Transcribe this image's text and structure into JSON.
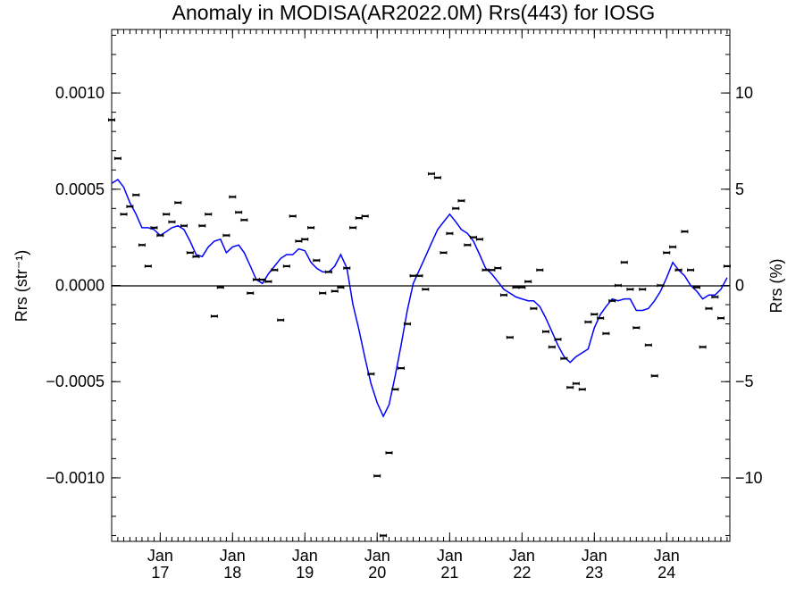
{
  "chart_data": {
    "type": "scatter",
    "title": "Anomaly in MODISA(AR2022.0M) Rrs(443) for IOSG",
    "ylabel_left": "Rrs (str⁻¹)",
    "ylabel_right": "Rrs (%)",
    "ylim": [
      -0.00133,
      0.00133
    ],
    "y2lim": [
      -13.3,
      13.3
    ],
    "xlim": [
      "2016-05-01",
      "2024-11-15"
    ],
    "yticks": [
      {
        "value": 0.001,
        "label": "0.0010"
      },
      {
        "value": 0.0005,
        "label": "0.0005"
      },
      {
        "value": 0.0,
        "label": "0.0000"
      },
      {
        "value": -0.0005,
        "label": "−0.0005"
      },
      {
        "value": -0.001,
        "label": "−0.0010"
      }
    ],
    "y2ticks": [
      {
        "value": 10,
        "label": "10"
      },
      {
        "value": 5,
        "label": "5"
      },
      {
        "value": 0,
        "label": "0"
      },
      {
        "value": -5,
        "label": "−5"
      },
      {
        "value": -10,
        "label": "−10"
      }
    ],
    "xticks": [
      {
        "date": "2017-01-01",
        "month": "Jan",
        "year": "17"
      },
      {
        "date": "2018-01-01",
        "month": "Jan",
        "year": "18"
      },
      {
        "date": "2019-01-01",
        "month": "Jan",
        "year": "19"
      },
      {
        "date": "2020-01-01",
        "month": "Jan",
        "year": "20"
      },
      {
        "date": "2021-01-01",
        "month": "Jan",
        "year": "21"
      },
      {
        "date": "2022-01-01",
        "month": "Jan",
        "year": "22"
      },
      {
        "date": "2023-01-01",
        "month": "Jan",
        "year": "23"
      },
      {
        "date": "2024-01-01",
        "month": "Jan",
        "year": "24"
      }
    ],
    "zero_line": true,
    "series": [
      {
        "kind": "monthly_points",
        "color": "#000000",
        "points": [
          [
            "2016-05-01",
            0.00086
          ],
          [
            "2016-06-01",
            0.00066
          ],
          [
            "2016-07-01",
            0.00037
          ],
          [
            "2016-08-01",
            0.00041
          ],
          [
            "2016-09-01",
            0.00047
          ],
          [
            "2016-10-01",
            0.00021
          ],
          [
            "2016-11-01",
            0.0001
          ],
          [
            "2016-12-01",
            0.0003
          ],
          [
            "2017-01-01",
            0.00026
          ],
          [
            "2017-02-01",
            0.00037
          ],
          [
            "2017-03-01",
            0.00033
          ],
          [
            "2017-04-01",
            0.00043
          ],
          [
            "2017-05-01",
            0.00031
          ],
          [
            "2017-06-01",
            0.00017
          ],
          [
            "2017-07-01",
            0.00015
          ],
          [
            "2017-08-01",
            0.00031
          ],
          [
            "2017-09-01",
            0.00037
          ],
          [
            "2017-10-01",
            -0.00016
          ],
          [
            "2017-11-01",
            -1e-05
          ],
          [
            "2017-12-01",
            0.00026
          ],
          [
            "2018-01-01",
            0.00046
          ],
          [
            "2018-02-01",
            0.00038
          ],
          [
            "2018-03-01",
            0.00034
          ],
          [
            "2018-04-01",
            -4e-05
          ],
          [
            "2018-05-01",
            3e-05
          ],
          [
            "2018-06-01",
            3e-05
          ],
          [
            "2018-07-01",
            2e-05
          ],
          [
            "2018-08-01",
            8e-05
          ],
          [
            "2018-09-01",
            -0.00018
          ],
          [
            "2018-10-01",
            0.0001
          ],
          [
            "2018-11-01",
            0.00036
          ],
          [
            "2018-12-01",
            0.00023
          ],
          [
            "2019-01-01",
            0.00024
          ],
          [
            "2019-02-01",
            0.0003
          ],
          [
            "2019-03-01",
            0.00013
          ],
          [
            "2019-04-01",
            -4e-05
          ],
          [
            "2019-05-01",
            7e-05
          ],
          [
            "2019-06-01",
            -3e-05
          ],
          [
            "2019-07-01",
            -1e-05
          ],
          [
            "2019-08-01",
            9e-05
          ],
          [
            "2019-09-01",
            0.0003
          ],
          [
            "2019-10-01",
            0.00035
          ],
          [
            "2019-11-01",
            0.00036
          ],
          [
            "2019-12-01",
            -0.00046
          ],
          [
            "2020-01-01",
            -0.00099
          ],
          [
            "2020-02-01",
            -0.0013
          ],
          [
            "2020-03-01",
            -0.00087
          ],
          [
            "2020-04-01",
            -0.00054
          ],
          [
            "2020-05-01",
            -0.00043
          ],
          [
            "2020-06-01",
            -0.0002
          ],
          [
            "2020-07-01",
            5e-05
          ],
          [
            "2020-08-01",
            5e-05
          ],
          [
            "2020-09-01",
            -2e-05
          ],
          [
            "2020-10-01",
            0.00058
          ],
          [
            "2020-11-01",
            0.00056
          ],
          [
            "2020-12-01",
            0.00017
          ],
          [
            "2021-01-01",
            0.00027
          ],
          [
            "2021-02-01",
            0.0004
          ],
          [
            "2021-03-01",
            0.00044
          ],
          [
            "2021-04-01",
            0.00021
          ],
          [
            "2021-05-01",
            0.00025
          ],
          [
            "2021-06-01",
            0.00024
          ],
          [
            "2021-07-01",
            8e-05
          ],
          [
            "2021-08-01",
            8e-05
          ],
          [
            "2021-09-01",
            9e-05
          ],
          [
            "2021-10-01",
            -5e-05
          ],
          [
            "2021-11-01",
            -0.00027
          ],
          [
            "2021-12-01",
            -1e-05
          ],
          [
            "2022-01-01",
            -1e-05
          ],
          [
            "2022-02-01",
            2e-05
          ],
          [
            "2022-03-01",
            -0.00012
          ],
          [
            "2022-04-01",
            8e-05
          ],
          [
            "2022-05-01",
            -0.00024
          ],
          [
            "2022-06-01",
            -0.00032
          ],
          [
            "2022-07-01",
            -0.00028
          ],
          [
            "2022-08-01",
            -0.00038
          ],
          [
            "2022-09-01",
            -0.00053
          ],
          [
            "2022-10-01",
            -0.00051
          ],
          [
            "2022-11-01",
            -0.00054
          ],
          [
            "2022-12-01",
            -0.00019
          ],
          [
            "2023-01-01",
            -0.00015
          ],
          [
            "2023-02-01",
            -0.00017
          ],
          [
            "2023-03-01",
            -0.00025
          ],
          [
            "2023-04-01",
            -8e-05
          ],
          [
            "2023-05-01",
            0.0
          ],
          [
            "2023-06-01",
            0.00012
          ],
          [
            "2023-07-01",
            -2e-05
          ],
          [
            "2023-08-01",
            -0.00022
          ],
          [
            "2023-09-01",
            -2e-05
          ],
          [
            "2023-10-01",
            -0.00031
          ],
          [
            "2023-11-01",
            -0.00047
          ],
          [
            "2023-12-01",
            0.0
          ],
          [
            "2024-01-01",
            0.00017
          ],
          [
            "2024-02-01",
            0.0002
          ],
          [
            "2024-03-01",
            8e-05
          ],
          [
            "2024-04-01",
            0.00028
          ],
          [
            "2024-05-01",
            8e-05
          ],
          [
            "2024-06-01",
            -1e-05
          ],
          [
            "2024-07-01",
            -0.00032
          ],
          [
            "2024-08-01",
            -0.00012
          ],
          [
            "2024-09-01",
            -6e-05
          ],
          [
            "2024-10-01",
            -0.00017
          ],
          [
            "2024-11-01",
            0.0001
          ]
        ]
      },
      {
        "kind": "running_mean",
        "color": "#0000ff",
        "points": [
          [
            "2016-05-01",
            0.00053
          ],
          [
            "2016-06-01",
            0.00055
          ],
          [
            "2016-07-01",
            0.00051
          ],
          [
            "2016-08-01",
            0.00043
          ],
          [
            "2016-09-01",
            0.00037
          ],
          [
            "2016-10-01",
            0.0003
          ],
          [
            "2016-11-01",
            0.0003
          ],
          [
            "2016-12-01",
            0.00029
          ],
          [
            "2017-01-01",
            0.00026
          ],
          [
            "2017-02-01",
            0.00028
          ],
          [
            "2017-03-01",
            0.0003
          ],
          [
            "2017-04-01",
            0.00031
          ],
          [
            "2017-05-01",
            0.00029
          ],
          [
            "2017-06-01",
            0.00023
          ],
          [
            "2017-07-01",
            0.00016
          ],
          [
            "2017-08-01",
            0.00015
          ],
          [
            "2017-09-01",
            0.0002
          ],
          [
            "2017-10-01",
            0.00023
          ],
          [
            "2017-11-01",
            0.00024
          ],
          [
            "2017-12-01",
            0.00017
          ],
          [
            "2018-01-01",
            0.0002
          ],
          [
            "2018-02-01",
            0.00021
          ],
          [
            "2018-03-01",
            0.00017
          ],
          [
            "2018-04-01",
            0.0001
          ],
          [
            "2018-05-01",
            3e-05
          ],
          [
            "2018-06-01",
            1e-05
          ],
          [
            "2018-07-01",
            6e-05
          ],
          [
            "2018-08-01",
            0.0001
          ],
          [
            "2018-09-01",
            0.00014
          ],
          [
            "2018-10-01",
            0.00016
          ],
          [
            "2018-11-01",
            0.00016
          ],
          [
            "2018-12-01",
            0.00019
          ],
          [
            "2019-01-01",
            0.00018
          ],
          [
            "2019-02-01",
            0.00012
          ],
          [
            "2019-03-01",
            9e-05
          ],
          [
            "2019-04-01",
            7e-05
          ],
          [
            "2019-05-01",
            7e-05
          ],
          [
            "2019-06-01",
            0.0001
          ],
          [
            "2019-07-01",
            0.00016
          ],
          [
            "2019-08-01",
            9e-05
          ],
          [
            "2019-09-01",
            -0.0001
          ],
          [
            "2019-10-01",
            -0.00023
          ],
          [
            "2019-11-01",
            -0.00038
          ],
          [
            "2019-12-01",
            -0.00051
          ],
          [
            "2020-01-01",
            -0.00061
          ],
          [
            "2020-02-01",
            -0.00068
          ],
          [
            "2020-03-01",
            -0.00062
          ],
          [
            "2020-04-01",
            -0.00047
          ],
          [
            "2020-05-01",
            -0.00031
          ],
          [
            "2020-06-01",
            -0.00013
          ],
          [
            "2020-07-01",
            1e-05
          ],
          [
            "2020-08-01",
            8e-05
          ],
          [
            "2020-09-01",
            0.00015
          ],
          [
            "2020-10-01",
            0.00022
          ],
          [
            "2020-11-01",
            0.00029
          ],
          [
            "2020-12-01",
            0.00033
          ],
          [
            "2021-01-01",
            0.00037
          ],
          [
            "2021-02-01",
            0.00033
          ],
          [
            "2021-03-01",
            0.00029
          ],
          [
            "2021-04-01",
            0.00027
          ],
          [
            "2021-05-01",
            0.00023
          ],
          [
            "2021-06-01",
            0.00016
          ],
          [
            "2021-07-01",
            9e-05
          ],
          [
            "2021-08-01",
            6e-05
          ],
          [
            "2021-09-01",
            2e-05
          ],
          [
            "2021-10-01",
            -2e-05
          ],
          [
            "2021-11-01",
            -4e-05
          ],
          [
            "2021-12-01",
            -6e-05
          ],
          [
            "2022-01-01",
            -7e-05
          ],
          [
            "2022-02-01",
            -8e-05
          ],
          [
            "2022-03-01",
            -8e-05
          ],
          [
            "2022-04-01",
            -0.00011
          ],
          [
            "2022-05-01",
            -0.00017
          ],
          [
            "2022-06-01",
            -0.00024
          ],
          [
            "2022-07-01",
            -0.00031
          ],
          [
            "2022-08-01",
            -0.00037
          ],
          [
            "2022-09-01",
            -0.0004
          ],
          [
            "2022-10-01",
            -0.00037
          ],
          [
            "2022-11-01",
            -0.00035
          ],
          [
            "2022-12-01",
            -0.00033
          ],
          [
            "2023-01-01",
            -0.00022
          ],
          [
            "2023-02-01",
            -0.00015
          ],
          [
            "2023-03-01",
            -0.00011
          ],
          [
            "2023-04-01",
            -7e-05
          ],
          [
            "2023-05-01",
            -8e-05
          ],
          [
            "2023-06-01",
            -7e-05
          ],
          [
            "2023-07-01",
            -7e-05
          ],
          [
            "2023-08-01",
            -0.00013
          ],
          [
            "2023-09-01",
            -0.00013
          ],
          [
            "2023-10-01",
            -0.00012
          ],
          [
            "2023-11-01",
            -8e-05
          ],
          [
            "2023-12-01",
            -3e-05
          ],
          [
            "2024-01-01",
            4e-05
          ],
          [
            "2024-02-01",
            0.00012
          ],
          [
            "2024-03-01",
            8e-05
          ],
          [
            "2024-04-01",
            5e-05
          ],
          [
            "2024-05-01",
            0.0
          ],
          [
            "2024-06-01",
            -3e-05
          ],
          [
            "2024-07-01",
            -7e-05
          ],
          [
            "2024-08-01",
            -5e-05
          ],
          [
            "2024-09-01",
            -5e-05
          ],
          [
            "2024-10-01",
            -2e-05
          ],
          [
            "2024-11-01",
            4e-05
          ]
        ]
      }
    ]
  }
}
